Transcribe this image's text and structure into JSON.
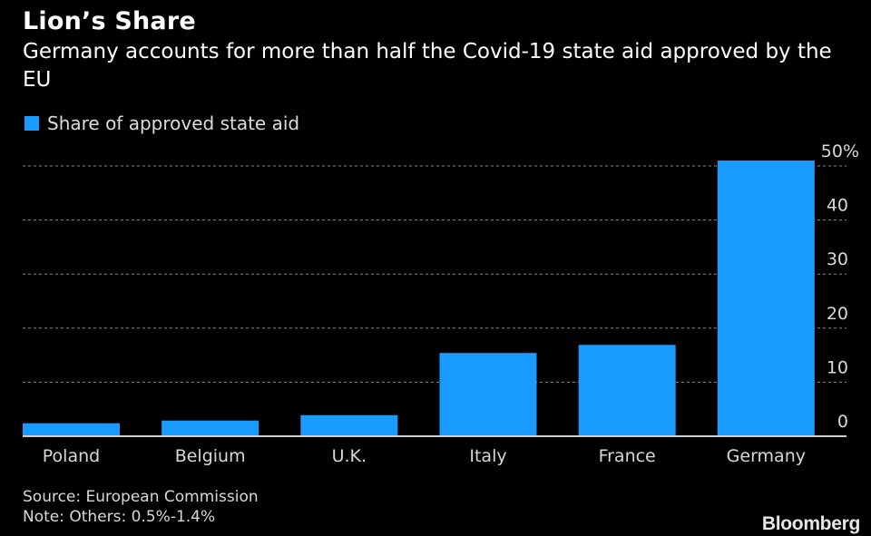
{
  "chart_data": {
    "type": "bar",
    "title": "Lion’s Share",
    "subtitle": "Germany accounts for more than half the Covid-19 state aid approved by the EU",
    "categories": [
      "Poland",
      "Belgium",
      "U.K.",
      "Italy",
      "France",
      "Germany"
    ],
    "series": [
      {
        "name": "Share of approved state aid",
        "values": [
          2.4,
          2.9,
          3.9,
          15.4,
          16.9,
          51.0
        ]
      }
    ],
    "xlabel": "",
    "ylabel": "",
    "ylim": [
      0,
      50
    ],
    "yticks": [
      0,
      10,
      20,
      30,
      40,
      50
    ],
    "ytick_labels": [
      "0",
      "10",
      "20",
      "30",
      "40",
      "50%"
    ],
    "y_axis_side": "right",
    "grid": true,
    "legend_position": "top-left",
    "bar_color": "#1a9bff",
    "source": "Source: European Commission",
    "note": "Note: Others: 0.5%-1.4%",
    "brand": "Bloomberg"
  }
}
